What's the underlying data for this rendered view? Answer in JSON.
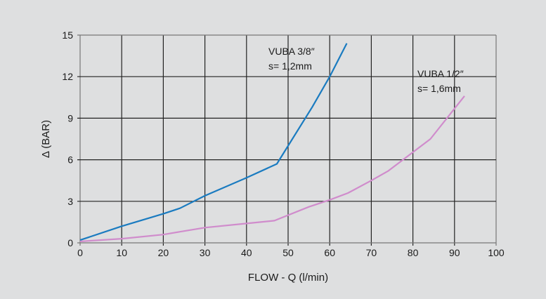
{
  "chart_data": {
    "type": "line",
    "title": "",
    "xlabel": "FLOW - Q (l/min)",
    "ylabel": "Δ (BAR)",
    "xlim": [
      0,
      100
    ],
    "ylim": [
      0,
      15
    ],
    "xticks": [
      "0",
      "10",
      "20",
      "30",
      "40",
      "50",
      "60",
      "70",
      "80",
      "90",
      "100"
    ],
    "yticks": [
      "0",
      "3",
      "6",
      "9",
      "12",
      "15"
    ],
    "grid": true,
    "series": [
      {
        "name": "VUBA 3/8\"",
        "note": "s= 1,2mm",
        "label_line1": "VUBA 3/8″",
        "label_line2": "s= 1,2mm",
        "color": "#1a7bc0",
        "x": [
          0,
          10,
          20,
          24,
          30,
          40,
          47.3,
          55.8,
          60,
          64.1
        ],
        "y": [
          0.2,
          1.2,
          2.1,
          2.5,
          3.4,
          4.7,
          5.7,
          9.8,
          12.0,
          14.4
        ]
      },
      {
        "name": "VUBA 1/2\"",
        "note": "s= 1,6mm",
        "label_line1": "VUBA 1/2″",
        "label_line2": "s= 1,6mm",
        "color": "#d08ccc",
        "x": [
          0,
          10,
          20,
          24,
          30,
          40,
          46.7,
          55,
          60,
          64.4,
          70,
          74.1,
          84.2,
          92.4
        ],
        "y": [
          0.1,
          0.3,
          0.6,
          0.8,
          1.1,
          1.4,
          1.6,
          2.6,
          3.1,
          3.6,
          4.5,
          5.2,
          7.5,
          10.6
        ]
      }
    ]
  }
}
